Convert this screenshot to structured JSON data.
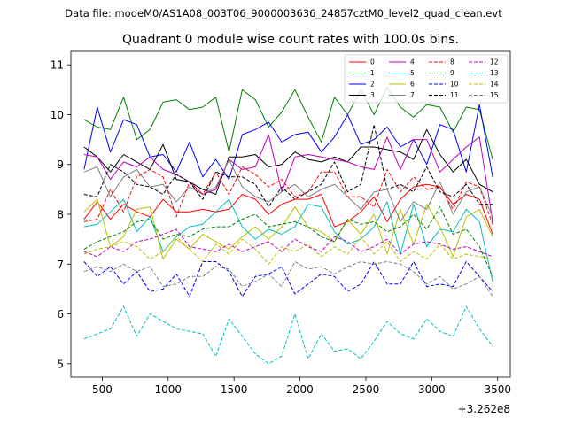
{
  "figure": {
    "suptitle": "Data file: modeM0/AS1A08_003T06_9000003636_24857cztM0_level2_quad_clean.evt",
    "offset_label": "+3.262e8"
  },
  "chart_data": {
    "type": "line",
    "title": "Quadrant 0 module wise count rates with 100.0s bins.",
    "xlabel": "",
    "ylabel": "",
    "xlim": [
      262,
      3596
    ],
    "ylim": [
      4.73,
      11.27
    ],
    "x_offset": 326200000,
    "xticks": [
      500,
      1000,
      1500,
      2000,
      2500,
      3000,
      3500
    ],
    "xtick_labels": [
      "500",
      "1000",
      "1500",
      "2000",
      "2500",
      "3000",
      "3500"
    ],
    "yticks": [
      5,
      6,
      7,
      8,
      9,
      10,
      11
    ],
    "ytick_labels": [
      "5",
      "6",
      "7",
      "8",
      "9",
      "10",
      "11"
    ],
    "grid": false,
    "legend_position": "upper right",
    "legend_columns": 4,
    "x": [
      362,
      462,
      562,
      662,
      762,
      862,
      962,
      1062,
      1162,
      1262,
      1362,
      1462,
      1562,
      1662,
      1762,
      1862,
      1962,
      2062,
      2162,
      2262,
      2362,
      2462,
      2562,
      2662,
      2762,
      2862,
      2962,
      3062,
      3162,
      3262,
      3362,
      3462
    ],
    "series": [
      {
        "name": "0",
        "color": "#ff0000",
        "dashed": false,
        "values": [
          7.9,
          8.25,
          7.9,
          8.2,
          8.05,
          7.95,
          8.3,
          8.05,
          8.05,
          8.1,
          8.05,
          8.1,
          8.4,
          8.3,
          8.0,
          8.2,
          8.3,
          8.3,
          8.4,
          7.75,
          7.85,
          8.05,
          8.35,
          7.85,
          8.3,
          8.55,
          8.6,
          8.55,
          8.2,
          8.4,
          8.3,
          7.6
        ]
      },
      {
        "name": "1",
        "color": "#008000",
        "dashed": false,
        "values": [
          9.9,
          9.75,
          9.7,
          10.35,
          9.5,
          9.7,
          10.25,
          10.3,
          10.1,
          10.15,
          10.35,
          9.25,
          10.5,
          10.3,
          9.75,
          10.05,
          10.5,
          9.95,
          9.45,
          10.35,
          10.0,
          10.5,
          10.0,
          10.55,
          10.15,
          9.95,
          10.2,
          10.15,
          9.65,
          10.15,
          10.1,
          9.1
        ]
      },
      {
        "name": "2",
        "color": "#0000ff",
        "dashed": false,
        "values": [
          8.9,
          10.15,
          9.25,
          9.9,
          9.8,
          9.15,
          9.2,
          8.85,
          9.45,
          8.75,
          9.1,
          8.7,
          9.6,
          9.7,
          9.85,
          9.45,
          9.6,
          9.65,
          9.25,
          9.55,
          10.0,
          9.4,
          9.5,
          9.75,
          9.35,
          9.5,
          9.0,
          9.8,
          9.7,
          8.85,
          10.2,
          8.75
        ]
      },
      {
        "name": "3",
        "color": "#000000",
        "dashed": false,
        "values": [
          9.35,
          9.15,
          8.85,
          9.2,
          9.05,
          8.9,
          9.4,
          8.7,
          8.65,
          8.5,
          8.4,
          9.15,
          9.15,
          9.2,
          8.95,
          9.0,
          9.25,
          9.1,
          9.05,
          9.15,
          9.05,
          9.35,
          9.35,
          9.3,
          9.25,
          9.1,
          9.7,
          9.2,
          8.85,
          9.1,
          8.6,
          8.45
        ]
      },
      {
        "name": "4",
        "color": "#bf00bf",
        "dashed": false,
        "values": [
          9.2,
          9.15,
          8.7,
          9.05,
          8.95,
          9.15,
          8.9,
          8.8,
          8.65,
          8.4,
          8.5,
          9.1,
          8.9,
          8.95,
          9.6,
          8.45,
          9.15,
          9.2,
          9.15,
          9.1,
          9.05,
          8.95,
          8.9,
          9.55,
          8.9,
          9.5,
          9.5,
          8.85,
          9.1,
          9.35,
          9.55,
          7.85
        ]
      },
      {
        "name": "5",
        "color": "#00bfbf",
        "dashed": false,
        "values": [
          7.75,
          7.8,
          8.05,
          8.3,
          7.65,
          7.95,
          7.25,
          7.55,
          7.75,
          7.8,
          8.05,
          8.3,
          7.75,
          7.5,
          7.7,
          7.6,
          7.75,
          8.2,
          8.15,
          7.65,
          7.4,
          7.5,
          7.75,
          8.25,
          7.2,
          8.2,
          7.35,
          7.7,
          7.65,
          8.1,
          7.85,
          6.65
        ]
      },
      {
        "name": "6",
        "color": "#bfbf00",
        "dashed": false,
        "values": [
          8.05,
          8.3,
          7.35,
          7.55,
          8.1,
          8.15,
          7.1,
          7.5,
          7.3,
          7.6,
          7.45,
          7.3,
          7.55,
          7.75,
          7.5,
          7.75,
          8.15,
          7.75,
          7.65,
          7.45,
          7.9,
          7.6,
          8.0,
          7.2,
          8.1,
          7.4,
          8.2,
          7.75,
          7.15,
          7.95,
          8.1,
          7.55
        ]
      },
      {
        "name": "7",
        "color": "#808080",
        "dashed": false,
        "values": [
          8.85,
          8.95,
          8.35,
          8.75,
          8.9,
          8.55,
          8.6,
          8.25,
          8.55,
          8.4,
          8.55,
          9.1,
          8.55,
          8.35,
          8.25,
          8.45,
          8.6,
          8.35,
          8.5,
          8.6,
          8.35,
          8.1,
          8.45,
          8.5,
          7.85,
          8.25,
          8.1,
          8.65,
          8.0,
          8.45,
          8.55,
          7.95
        ]
      },
      {
        "name": "8",
        "color": "#ff0000",
        "dashed": true,
        "values": [
          7.85,
          7.9,
          8.5,
          8.05,
          8.75,
          8.9,
          8.75,
          7.95,
          8.65,
          8.4,
          8.85,
          8.4,
          8.95,
          8.8,
          8.55,
          8.7,
          8.35,
          8.45,
          8.85,
          8.85,
          8.35,
          8.35,
          8.15,
          8.9,
          8.45,
          8.75,
          8.5,
          8.55,
          8.1,
          8.65,
          8.55,
          7.8
        ]
      },
      {
        "name": "9",
        "color": "#008000",
        "dashed": true,
        "values": [
          7.3,
          7.45,
          7.55,
          7.65,
          7.85,
          7.9,
          7.5,
          7.6,
          7.55,
          7.7,
          7.75,
          7.75,
          7.9,
          8.0,
          7.75,
          7.8,
          7.85,
          7.75,
          7.55,
          7.45,
          7.9,
          7.8,
          7.85,
          7.65,
          7.75,
          8.0,
          7.7,
          8.15,
          7.6,
          7.7,
          7.35,
          6.75
        ]
      },
      {
        "name": "10",
        "color": "#0000ff",
        "dashed": true,
        "values": [
          7.05,
          6.75,
          6.95,
          6.6,
          6.85,
          6.45,
          6.5,
          6.8,
          6.35,
          7.05,
          7.05,
          6.85,
          6.35,
          6.75,
          6.8,
          6.95,
          6.4,
          6.6,
          6.8,
          6.75,
          6.45,
          6.6,
          7.05,
          6.6,
          6.6,
          7.05,
          6.55,
          6.6,
          6.55,
          7.05,
          6.75,
          6.45
        ]
      },
      {
        "name": "11",
        "color": "#000000",
        "dashed": true,
        "values": [
          8.4,
          8.35,
          9.0,
          8.85,
          8.6,
          8.55,
          8.4,
          8.8,
          8.65,
          8.3,
          8.85,
          8.75,
          8.75,
          8.6,
          8.15,
          8.55,
          8.3,
          8.45,
          8.6,
          9.05,
          8.45,
          8.6,
          9.8,
          8.5,
          8.6,
          8.45,
          8.95,
          8.45,
          8.35,
          8.6,
          8.2,
          8.2
        ]
      },
      {
        "name": "12",
        "color": "#bf00bf",
        "dashed": true,
        "values": [
          7.25,
          7.15,
          7.35,
          7.25,
          7.45,
          7.5,
          7.6,
          7.7,
          7.35,
          7.3,
          7.25,
          7.4,
          7.25,
          7.35,
          7.45,
          7.25,
          7.5,
          7.35,
          7.25,
          7.55,
          7.45,
          7.25,
          7.35,
          7.5,
          7.2,
          7.4,
          7.45,
          7.4,
          7.3,
          7.35,
          7.25,
          7.15
        ]
      },
      {
        "name": "13",
        "color": "#00bfbf",
        "dashed": true,
        "values": [
          5.5,
          5.6,
          5.7,
          6.15,
          5.55,
          6.0,
          5.85,
          5.7,
          5.65,
          5.6,
          5.15,
          5.9,
          5.55,
          5.2,
          5.0,
          5.15,
          6.0,
          5.1,
          5.6,
          5.25,
          5.3,
          5.1,
          5.45,
          5.85,
          5.6,
          5.5,
          5.9,
          5.65,
          5.55,
          6.15,
          5.7,
          5.35
        ]
      },
      {
        "name": "14",
        "color": "#bfbf00",
        "dashed": true,
        "values": [
          7.2,
          7.3,
          7.35,
          7.45,
          7.35,
          7.1,
          7.25,
          7.55,
          7.3,
          7.05,
          7.4,
          7.2,
          7.5,
          7.3,
          7.0,
          7.35,
          7.25,
          7.4,
          7.15,
          7.35,
          7.2,
          7.55,
          7.2,
          7.45,
          7.05,
          7.25,
          7.1,
          7.4,
          7.1,
          7.2,
          7.15,
          7.1
        ]
      },
      {
        "name": "15",
        "color": "#808080",
        "dashed": true,
        "values": [
          6.85,
          6.95,
          6.85,
          7.0,
          6.85,
          6.95,
          6.55,
          6.6,
          6.75,
          6.75,
          6.95,
          6.9,
          6.55,
          6.65,
          6.8,
          6.55,
          7.05,
          6.9,
          6.95,
          6.8,
          6.95,
          7.05,
          7.0,
          7.05,
          7.0,
          6.85,
          6.6,
          6.75,
          6.5,
          6.6,
          6.75,
          6.35
        ]
      }
    ]
  }
}
